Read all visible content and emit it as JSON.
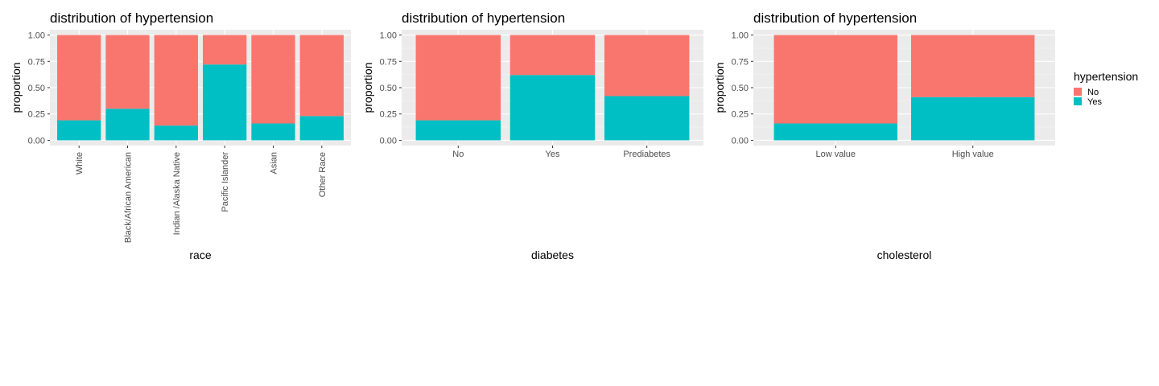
{
  "legend": {
    "title": "hypertension",
    "items": [
      {
        "label": "No",
        "color": "#F8766D"
      },
      {
        "label": "Yes",
        "color": "#00BFC4"
      }
    ]
  },
  "chart_data": [
    {
      "type": "bar",
      "stacked": true,
      "title": "distribution of hypertension",
      "xlabel": "race",
      "ylabel": "proportion",
      "ylim": [
        0,
        1
      ],
      "yticks": [
        "0.00",
        "0.25",
        "0.50",
        "0.75",
        "1.00"
      ],
      "categories": [
        "White",
        "Black/African American",
        "Indian /Alaska Native",
        "Pacific Islander",
        "Asian",
        "Other Race"
      ],
      "series": [
        {
          "name": "Yes",
          "color": "#00BFC4",
          "values": [
            0.19,
            0.3,
            0.14,
            0.72,
            0.16,
            0.23
          ]
        },
        {
          "name": "No",
          "color": "#F8766D",
          "values": [
            0.81,
            0.7,
            0.86,
            0.28,
            0.84,
            0.77
          ]
        }
      ],
      "rotate_x_labels": true,
      "grid": true
    },
    {
      "type": "bar",
      "stacked": true,
      "title": "distribution of hypertension",
      "xlabel": "diabetes",
      "ylabel": "proportion",
      "ylim": [
        0,
        1
      ],
      "yticks": [
        "0.00",
        "0.25",
        "0.50",
        "0.75",
        "1.00"
      ],
      "categories": [
        "No",
        "Yes",
        "Prediabetes"
      ],
      "series": [
        {
          "name": "Yes",
          "color": "#00BFC4",
          "values": [
            0.19,
            0.62,
            0.42
          ]
        },
        {
          "name": "No",
          "color": "#F8766D",
          "values": [
            0.81,
            0.38,
            0.58
          ]
        }
      ],
      "rotate_x_labels": false,
      "grid": true
    },
    {
      "type": "bar",
      "stacked": true,
      "title": "distribution of hypertension",
      "xlabel": "cholesterol",
      "ylabel": "proportion",
      "ylim": [
        0,
        1
      ],
      "yticks": [
        "0.00",
        "0.25",
        "0.50",
        "0.75",
        "1.00"
      ],
      "categories": [
        "Low value",
        "High value"
      ],
      "series": [
        {
          "name": "Yes",
          "color": "#00BFC4",
          "values": [
            0.16,
            0.41
          ]
        },
        {
          "name": "No",
          "color": "#F8766D",
          "values": [
            0.84,
            0.59
          ]
        }
      ],
      "rotate_x_labels": false,
      "grid": true,
      "legend_position": "right"
    }
  ]
}
